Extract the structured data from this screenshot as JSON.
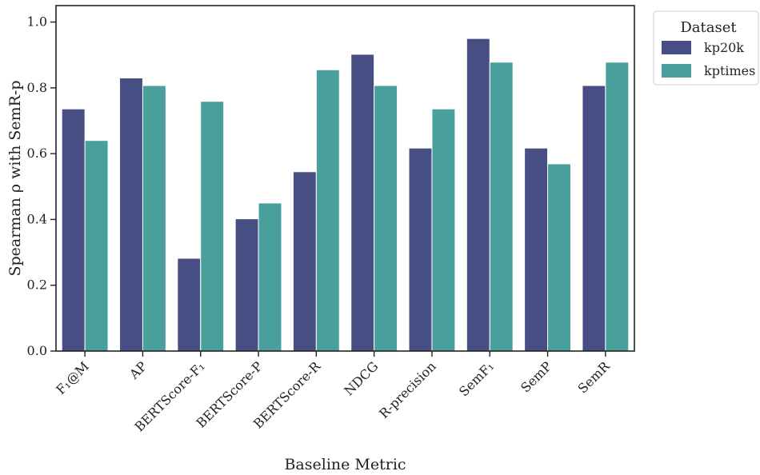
{
  "chart_data": {
    "type": "bar",
    "title": "",
    "xlabel": "Baseline Metric",
    "ylabel": "Spearman ρ with SemR-p",
    "ylim": [
      0,
      1.05
    ],
    "yticks": [
      "0.0",
      "0.2",
      "0.4",
      "0.6",
      "0.8",
      "1.0"
    ],
    "categories": [
      "F₁@M",
      "AP",
      "BERTScore-F₁",
      "BERTScore-P",
      "BERTScore-R",
      "NDCG",
      "R-precision",
      "SemF₁",
      "SemP",
      "SemR"
    ],
    "series": [
      {
        "name": "kp20k",
        "color": "#464e84",
        "values": [
          0.736,
          0.83,
          0.282,
          0.402,
          0.545,
          0.902,
          0.617,
          0.95,
          0.617,
          0.807
        ]
      },
      {
        "name": "kptimes",
        "color": "#489f9b",
        "values": [
          0.64,
          0.807,
          0.759,
          0.45,
          0.855,
          0.807,
          0.736,
          0.878,
          0.569,
          0.878
        ]
      }
    ],
    "grid": false,
    "legend": {
      "title": "Dataset",
      "placement": "outside-top-right"
    }
  }
}
